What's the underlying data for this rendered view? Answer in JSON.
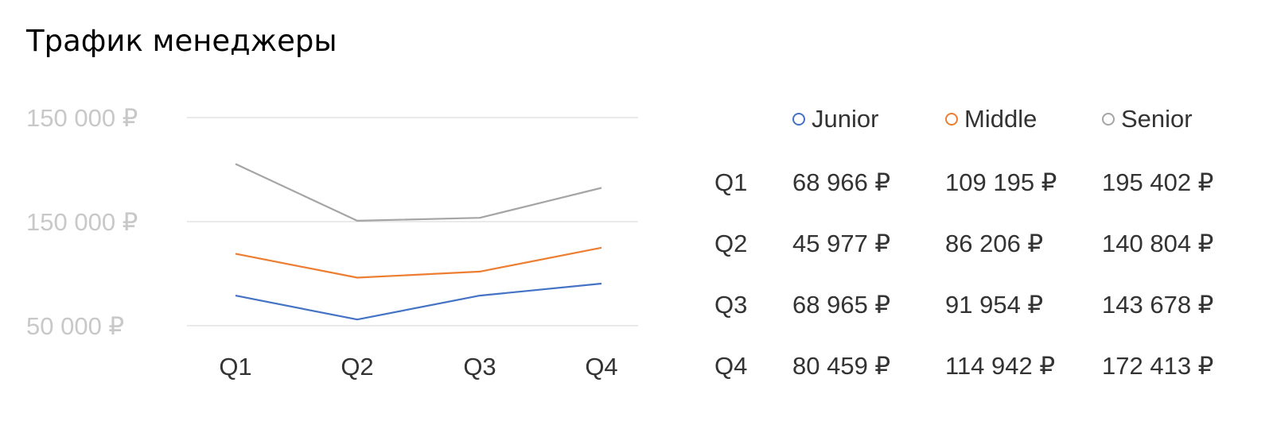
{
  "title": "Трафик менеджеры",
  "chart_data": {
    "type": "line",
    "title": "Трафик менеджеры",
    "categories": [
      "Q1",
      "Q2",
      "Q3",
      "Q4"
    ],
    "y_tick_labels": [
      "150 000 ₽",
      "150 000 ₽",
      "50 000 ₽"
    ],
    "ylim": [
      40000,
      240000
    ],
    "grid": true,
    "legend_position": "top-right",
    "series": [
      {
        "name": "Junior",
        "color": "#4472c4",
        "values": [
          68966,
          45977,
          68965,
          80459
        ]
      },
      {
        "name": "Middle",
        "color": "#ed7d31",
        "values": [
          109195,
          86206,
          91954,
          114942
        ]
      },
      {
        "name": "Senior",
        "color": "#a5a5a5",
        "values": [
          195402,
          140804,
          143678,
          172413
        ]
      }
    ]
  },
  "table": {
    "rows": [
      {
        "label": "Q1",
        "cells": [
          "68 966 ₽",
          "109 195 ₽",
          "195 402 ₽"
        ]
      },
      {
        "label": "Q2",
        "cells": [
          "45 977 ₽",
          "86 206 ₽",
          "140 804 ₽"
        ]
      },
      {
        "label": "Q3",
        "cells": [
          "68 965 ₽",
          "91 954 ₽",
          "143 678 ₽"
        ]
      },
      {
        "label": "Q4",
        "cells": [
          "80 459 ₽",
          "114 942 ₽",
          "172 413 ₽"
        ]
      }
    ]
  }
}
